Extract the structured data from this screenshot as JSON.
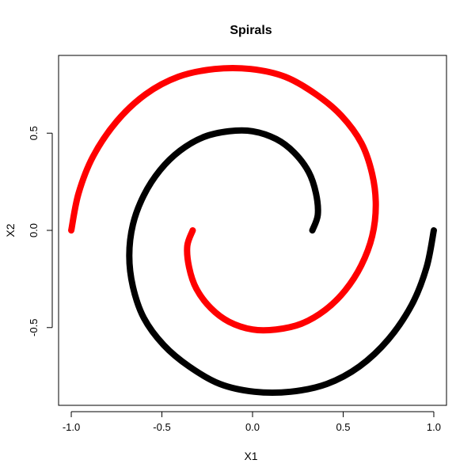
{
  "chart_data": {
    "type": "scatter",
    "title": "Spirals",
    "xlabel": "X1",
    "ylabel": "X2",
    "xlim": [
      -1.07,
      1.07
    ],
    "ylim": [
      -0.9,
      0.9
    ],
    "x_ticks": [
      -1.0,
      -0.5,
      0.0,
      0.5,
      1.0
    ],
    "x_tick_labels": [
      "-1.0",
      "-0.5",
      "0.0",
      "0.5",
      "1.0"
    ],
    "y_ticks": [
      -0.5,
      0.0,
      0.5
    ],
    "y_tick_labels": [
      "-0.5",
      "0.0",
      "0.5"
    ],
    "grid": false,
    "series": [
      {
        "color": "#ff0000",
        "points": [
          [
            -1.0,
            0.0
          ],
          [
            -0.96,
            0.19
          ],
          [
            -0.88,
            0.38
          ],
          [
            -0.75,
            0.56
          ],
          [
            -0.59,
            0.7
          ],
          [
            -0.41,
            0.79
          ],
          [
            -0.21,
            0.83
          ],
          [
            -0.01,
            0.83
          ],
          [
            0.18,
            0.79
          ],
          [
            0.35,
            0.7
          ],
          [
            0.49,
            0.59
          ],
          [
            0.6,
            0.45
          ],
          [
            0.66,
            0.29
          ],
          [
            0.68,
            0.13
          ],
          [
            0.66,
            -0.03
          ],
          [
            0.6,
            -0.18
          ],
          [
            0.51,
            -0.31
          ],
          [
            0.4,
            -0.41
          ],
          [
            0.27,
            -0.48
          ],
          [
            0.13,
            -0.51
          ],
          [
            0.0,
            -0.51
          ],
          [
            -0.13,
            -0.47
          ],
          [
            -0.23,
            -0.4
          ],
          [
            -0.31,
            -0.3
          ],
          [
            -0.35,
            -0.19
          ],
          [
            -0.36,
            -0.08
          ],
          [
            -0.33,
            0.0
          ]
        ]
      },
      {
        "color": "#000000",
        "points": [
          [
            1.0,
            0.0
          ],
          [
            0.96,
            -0.19
          ],
          [
            0.88,
            -0.38
          ],
          [
            0.75,
            -0.56
          ],
          [
            0.59,
            -0.7
          ],
          [
            0.41,
            -0.79
          ],
          [
            0.21,
            -0.83
          ],
          [
            0.01,
            -0.83
          ],
          [
            -0.18,
            -0.79
          ],
          [
            -0.35,
            -0.7
          ],
          [
            -0.49,
            -0.59
          ],
          [
            -0.6,
            -0.45
          ],
          [
            -0.66,
            -0.29
          ],
          [
            -0.68,
            -0.13
          ],
          [
            -0.66,
            0.03
          ],
          [
            -0.6,
            0.18
          ],
          [
            -0.51,
            0.31
          ],
          [
            -0.4,
            0.41
          ],
          [
            -0.27,
            0.48
          ],
          [
            -0.13,
            0.51
          ],
          [
            0.0,
            0.51
          ],
          [
            0.13,
            0.47
          ],
          [
            0.23,
            0.4
          ],
          [
            0.31,
            0.3
          ],
          [
            0.35,
            0.19
          ],
          [
            0.36,
            0.08
          ],
          [
            0.33,
            0.0
          ]
        ]
      }
    ]
  }
}
